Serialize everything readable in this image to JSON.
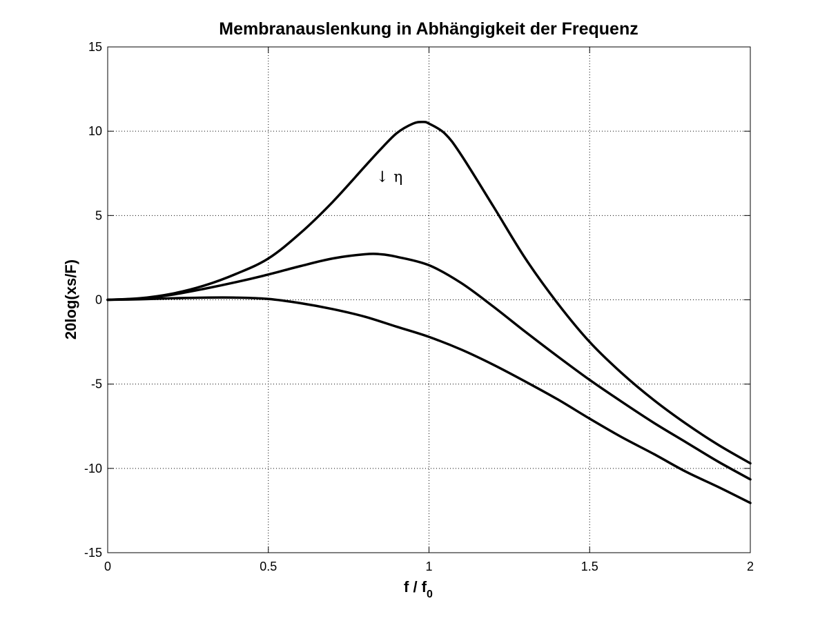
{
  "chart_data": {
    "type": "line",
    "title": "Membranauslenkung in Abhängigkeit der Frequenz",
    "xlabel_main": "f / f",
    "xlabel_sub": "0",
    "ylabel": "20log(xs/F)",
    "xlim": [
      0,
      2
    ],
    "ylim": [
      -15,
      15
    ],
    "xticks": [
      0,
      0.5,
      1,
      1.5,
      2
    ],
    "xtick_labels": [
      "0",
      "0.5",
      "1",
      "1.5",
      "2"
    ],
    "yticks": [
      -15,
      -10,
      -5,
      0,
      5,
      10,
      15
    ],
    "ytick_labels": [
      "-15",
      "-10",
      "-5",
      "0",
      "5",
      "10",
      "15"
    ],
    "grid": true,
    "series": [
      {
        "x": [
          0,
          0.1,
          0.2,
          0.3,
          0.4,
          0.5,
          0.6,
          0.7,
          0.8,
          0.85,
          0.9,
          0.95,
          0.98,
          1.0,
          1.05,
          1.1,
          1.2,
          1.3,
          1.4,
          1.5,
          1.6,
          1.7,
          1.8,
          1.9,
          2.0
        ],
        "values": [
          0,
          0.09,
          0.36,
          0.84,
          1.54,
          2.45,
          3.96,
          5.8,
          7.9,
          8.94,
          9.89,
          10.45,
          10.55,
          10.45,
          9.85,
          8.6,
          5.55,
          2.45,
          -0.2,
          -2.5,
          -4.35,
          -5.95,
          -7.35,
          -8.6,
          -9.7
        ]
      },
      {
        "x": [
          0,
          0.1,
          0.2,
          0.3,
          0.4,
          0.5,
          0.6,
          0.7,
          0.8,
          0.85,
          0.9,
          1.0,
          1.1,
          1.2,
          1.3,
          1.4,
          1.5,
          1.6,
          1.7,
          1.8,
          1.9,
          2.0
        ],
        "values": [
          0,
          0.07,
          0.3,
          0.65,
          1.05,
          1.5,
          2.0,
          2.45,
          2.7,
          2.7,
          2.55,
          2.05,
          1.0,
          -0.4,
          -1.9,
          -3.35,
          -4.75,
          -6.05,
          -7.3,
          -8.45,
          -9.6,
          -10.65
        ]
      },
      {
        "x": [
          0,
          0.1,
          0.2,
          0.3,
          0.4,
          0.5,
          0.6,
          0.7,
          0.8,
          0.9,
          1.0,
          1.1,
          1.2,
          1.3,
          1.4,
          1.5,
          1.6,
          1.7,
          1.8,
          1.9,
          2.0
        ],
        "values": [
          0,
          0.03,
          0.09,
          0.13,
          0.13,
          0.05,
          -0.2,
          -0.55,
          -1.0,
          -1.6,
          -2.2,
          -2.95,
          -3.85,
          -4.85,
          -5.9,
          -7.05,
          -8.15,
          -9.15,
          -10.2,
          -11.1,
          -12.05
        ]
      }
    ],
    "annotations": [
      {
        "text": "↓ η",
        "x": 0.85,
        "y": 7.0
      }
    ]
  }
}
